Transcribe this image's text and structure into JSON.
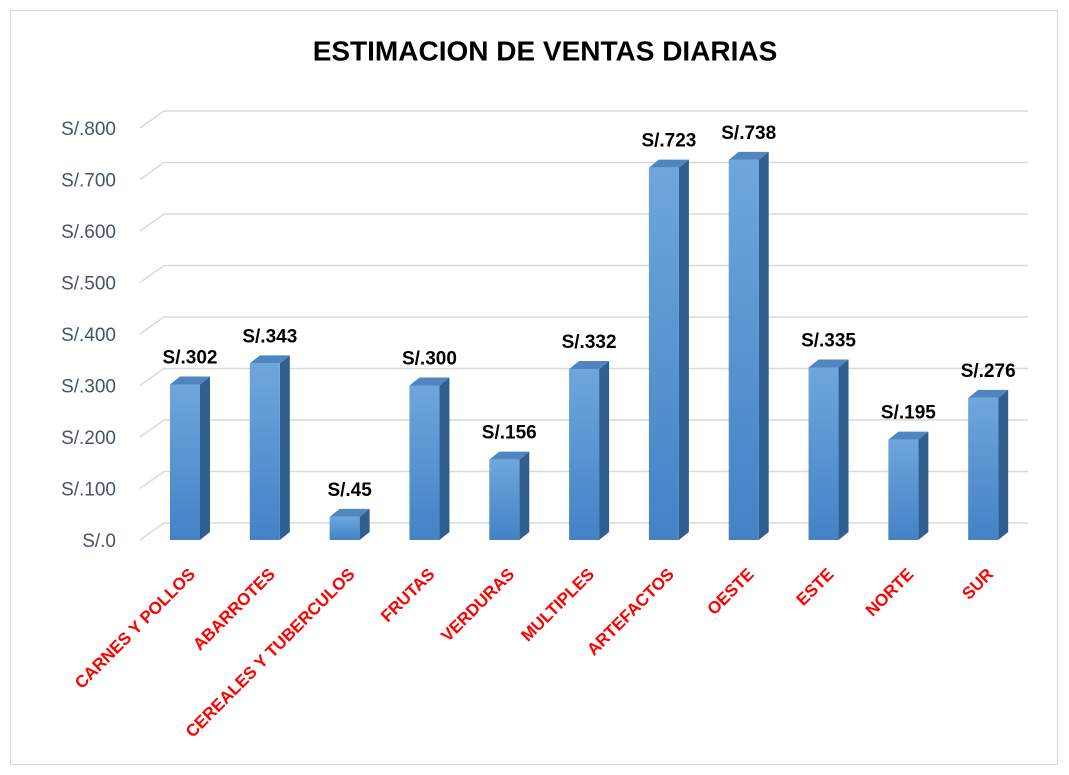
{
  "chart_data": {
    "type": "bar3d",
    "title": "ESTIMACION DE VENTAS DIARIAS",
    "categories": [
      "CARNES Y POLLOS",
      "ABARROTES",
      "CEREALES Y TUBERCULOS",
      "FRUTAS",
      "VERDURAS",
      "MULTIPLES",
      "ARTEFACTOS",
      "OESTE",
      "ESTE",
      "NORTE",
      "SUR"
    ],
    "values": [
      302,
      343,
      45,
      300,
      156,
      332,
      723,
      738,
      335,
      195,
      276
    ],
    "value_labels": [
      "S/.302",
      "S/.343",
      "S/.45",
      "S/.300",
      "S/.156",
      "S/.332",
      "S/.723",
      "S/.738",
      "S/.335",
      "S/.195",
      "S/.276"
    ],
    "color": "#5b9bd5",
    "ylim": [
      0,
      800
    ],
    "yticks": [
      {
        "value": 0,
        "label": "S/.0"
      },
      {
        "value": 100,
        "label": "S/.100"
      },
      {
        "value": 200,
        "label": "S/.200"
      },
      {
        "value": 300,
        "label": "S/.300"
      },
      {
        "value": 400,
        "label": "S/.400"
      },
      {
        "value": 500,
        "label": "S/.500"
      },
      {
        "value": 600,
        "label": "S/.600"
      },
      {
        "value": 700,
        "label": "S/.700"
      },
      {
        "value": 800,
        "label": "S/.800"
      }
    ],
    "grid": true
  }
}
